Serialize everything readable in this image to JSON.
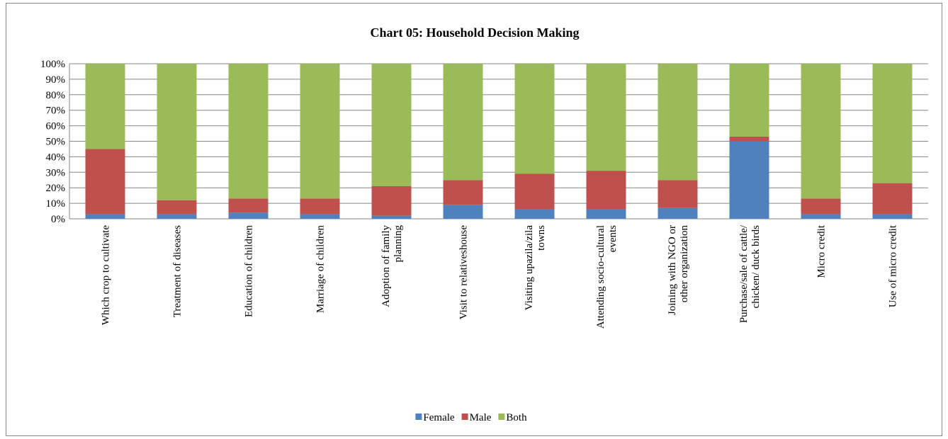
{
  "chart_data": {
    "type": "stacked_bar",
    "title": "Chart 05: Household Decision Making",
    "categories": [
      "Which crop to cultivate",
      "Treatment of diseases",
      "Education of children",
      "Marriage of children",
      "Adoption of family planning",
      "Visit to relativeshouse",
      "Visiting upazila/zila towns",
      "Attending socio-cultural events",
      "Joining with NGO or other organization",
      "Purchase/sale of cattle/ chicken/ duck birds",
      "Micro credit",
      "Use of micro credit"
    ],
    "series": [
      {
        "name": "Female",
        "color": "#4f81bd",
        "values": [
          3,
          3,
          4,
          3,
          2,
          9,
          6,
          6,
          7,
          50,
          3,
          3
        ]
      },
      {
        "name": "Male",
        "color": "#c0504d",
        "values": [
          42,
          9,
          9,
          10,
          19,
          16,
          23,
          25,
          18,
          3,
          10,
          20
        ]
      },
      {
        "name": "Both",
        "color": "#9bbb59",
        "values": [
          55,
          88,
          87,
          87,
          79,
          75,
          71,
          69,
          75,
          47,
          87,
          77
        ]
      }
    ],
    "ylim": [
      0,
      100
    ],
    "yticks": [
      {
        "value": 0,
        "label": "0%"
      },
      {
        "value": 10,
        "label": "10%"
      },
      {
        "value": 20,
        "label": "20%"
      },
      {
        "value": 30,
        "label": "30%"
      },
      {
        "value": 40,
        "label": "40%"
      },
      {
        "value": 50,
        "label": "50%"
      },
      {
        "value": 60,
        "label": "60%"
      },
      {
        "value": 70,
        "label": "70%"
      },
      {
        "value": 80,
        "label": "80%"
      },
      {
        "value": 90,
        "label": "90%"
      },
      {
        "value": 100,
        "label": "100%"
      }
    ],
    "grid": true,
    "legend": "bottom"
  }
}
